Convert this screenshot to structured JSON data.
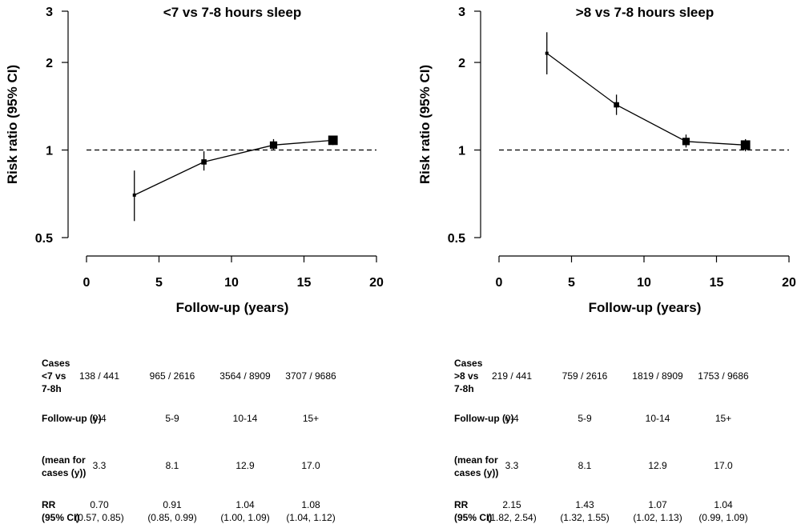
{
  "chart_data": [
    {
      "type": "line",
      "title": "<7 vs 7-8 hours sleep",
      "xlabel": "Follow-up (years)",
      "ylabel": "Risk ratio (95% CI)",
      "xlim": [
        0,
        20
      ],
      "ylim": [
        0.5,
        3
      ],
      "y_scale": "log",
      "xticks": [
        0,
        5,
        10,
        15,
        20
      ],
      "yticks": [
        0.5,
        1,
        2,
        3
      ],
      "reference_line": 1,
      "x": [
        3.3,
        8.1,
        12.9,
        17.0
      ],
      "y": [
        0.7,
        0.91,
        1.04,
        1.08
      ],
      "ci_low": [
        0.57,
        0.85,
        1.0,
        1.04
      ],
      "ci_high": [
        0.85,
        0.99,
        1.09,
        1.12
      ],
      "table": {
        "cases_label": [
          "Cases",
          "<7 vs",
          "7-8h"
        ],
        "cases": [
          "138 / 441",
          "965 / 2616",
          "3564 / 8909",
          "3707 / 9686"
        ],
        "followup_label": "Follow-up (y)",
        "followup": [
          "0-4",
          "5-9",
          "10-14",
          "15+"
        ],
        "mean_label": [
          "(mean for",
          "cases (y))"
        ],
        "mean": [
          "3.3",
          "8.1",
          "12.9",
          "17.0"
        ],
        "rr_label": [
          "RR",
          "(95% CI)"
        ],
        "rr": [
          "0.70",
          "0.91",
          "1.04",
          "1.08"
        ],
        "ci": [
          "(0.57, 0.85)",
          "(0.85, 0.99)",
          "(1.00, 1.09)",
          "(1.04, 1.12)"
        ]
      }
    },
    {
      "type": "line",
      "title": ">8 vs 7-8 hours sleep",
      "xlabel": "Follow-up (years)",
      "ylabel": "Risk ratio (95% CI)",
      "xlim": [
        0,
        20
      ],
      "ylim": [
        0.5,
        3
      ],
      "y_scale": "log",
      "xticks": [
        0,
        5,
        10,
        15,
        20
      ],
      "yticks": [
        0.5,
        1,
        2,
        3
      ],
      "reference_line": 1,
      "x": [
        3.3,
        8.1,
        12.9,
        17.0
      ],
      "y": [
        2.15,
        1.43,
        1.07,
        1.04
      ],
      "ci_low": [
        1.82,
        1.32,
        1.02,
        0.99
      ],
      "ci_high": [
        2.54,
        1.55,
        1.13,
        1.09
      ],
      "table": {
        "cases_label": [
          "Cases",
          ">8 vs",
          "7-8h"
        ],
        "cases": [
          "219 / 441",
          "759 / 2616",
          "1819 / 8909",
          "1753 / 9686"
        ],
        "followup_label": "Follow-up (y)",
        "followup": [
          "0-4",
          "5-9",
          "10-14",
          "15+"
        ],
        "mean_label": [
          "(mean for",
          "cases (y))"
        ],
        "mean": [
          "3.3",
          "8.1",
          "12.9",
          "17.0"
        ],
        "rr_label": [
          "RR",
          "(95% CI)"
        ],
        "rr": [
          "2.15",
          "1.43",
          "1.07",
          "1.04"
        ],
        "ci": [
          "(1.82, 2.54)",
          "(1.32, 1.55)",
          "(1.02, 1.13)",
          "(0.99, 1.09)"
        ]
      }
    }
  ]
}
